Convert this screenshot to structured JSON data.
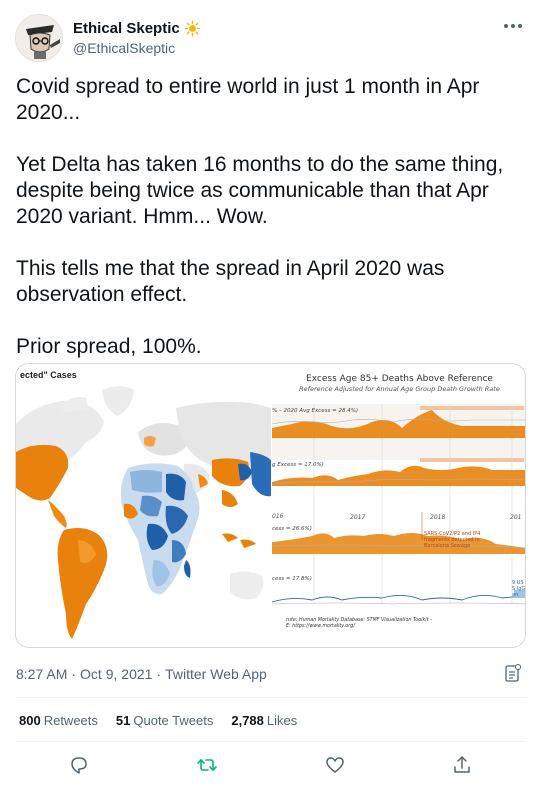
{
  "author": {
    "display_name": "Ethical Skeptic",
    "handle": "@EthicalSkeptic",
    "badge_icon": "sun-icon"
  },
  "tweet": {
    "paragraphs": [
      "Covid spread to entire world in just 1 month in Apr 2020...",
      "Yet Delta has taken 16 months to do the same thing, despite being twice as communicable than that Apr 2020 variant. Hmm... Wow.",
      "This tells me that the spread in April 2020 was observation effect.",
      "Prior spread, 100%."
    ]
  },
  "media": {
    "map": {
      "title": "ected\" Cases"
    },
    "chart": {
      "title": "Excess Age 85+ Deaths Above Reference",
      "subtitle": "Reference Adjusted for Annual Age Group Death Growth Rate",
      "panel_labels": [
        "% – 2020 Avg Excess = 28.4%)",
        "g Excess = 17.0%)",
        "cess = 26.6%)",
        "cess = 17.8%)"
      ],
      "year_labels": [
        "016",
        "2017",
        "2018",
        "201"
      ],
      "annotation": "SARS-CoV2/P2 and IP4 fragments detected in Barcelona Sewage",
      "side_label": "9 US S IgG an",
      "source_line1": "rute: Human Mortality Database: STMF Visualization Toolkit –",
      "source_line2": "E: https://www.mortality.org/"
    }
  },
  "meta": {
    "time": "8:27 AM",
    "sep1": "·",
    "date": "Oct 9, 2021",
    "sep2": "·",
    "client": "Twitter Web App"
  },
  "stats": {
    "retweets_count": "800",
    "retweets_label": "Retweets",
    "quotes_count": "51",
    "quotes_label": "Quote Tweets",
    "likes_count": "2,788",
    "likes_label": "Likes"
  },
  "colors": {
    "orange": "#e8820c",
    "blue_dark": "#1f5fa8",
    "blue_light": "#9ec3e6",
    "accent_green": "#00ba7c"
  }
}
